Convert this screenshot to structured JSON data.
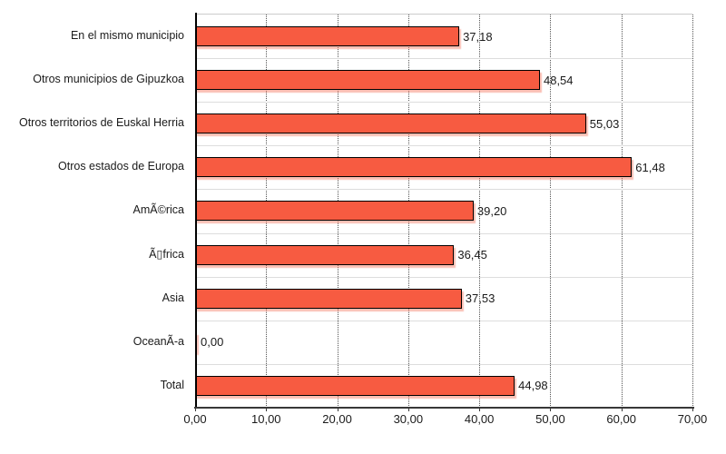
{
  "chart_data": {
    "type": "bar",
    "orientation": "horizontal",
    "title": "",
    "categories": [
      "En el mismo municipio",
      "Otros municipios de Gipuzkoa",
      "Otros territorios de Euskal Herria",
      "Otros estados de Europa",
      "AmÃ©rica",
      "Ã▯frica",
      "Asia",
      "OceanÃ-a",
      "Total"
    ],
    "values": [
      37.18,
      48.54,
      55.03,
      61.48,
      39.2,
      36.45,
      37.53,
      0.0,
      44.98
    ],
    "value_labels": [
      "37,18",
      "48,54",
      "55,03",
      "61,48",
      "39,20",
      "36,45",
      "37,53",
      "0,00",
      "44,98"
    ],
    "x_ticks": [
      0,
      10,
      20,
      30,
      40,
      50,
      60,
      70
    ],
    "x_tick_labels": [
      "0,00",
      "10,00",
      "20,00",
      "30,00",
      "40,00",
      "50,00",
      "60,00",
      "70,00"
    ],
    "xlim": [
      0,
      70
    ],
    "xlabel": "",
    "ylabel": "",
    "legend": null,
    "grid": {
      "vertical": "dotted",
      "horizontal": "solid-row-separators"
    },
    "colors": {
      "bar_fill": "#f75b41",
      "bar_border": "#000000",
      "bar_shadow": "rgba(243,112,88,0.45)",
      "grid_vertical": "#555555",
      "grid_horizontal": "#dddddd",
      "axis_y": "#000000",
      "axis_x": "#383838",
      "text": "#1a1a1a",
      "background": "#ffffff"
    }
  }
}
